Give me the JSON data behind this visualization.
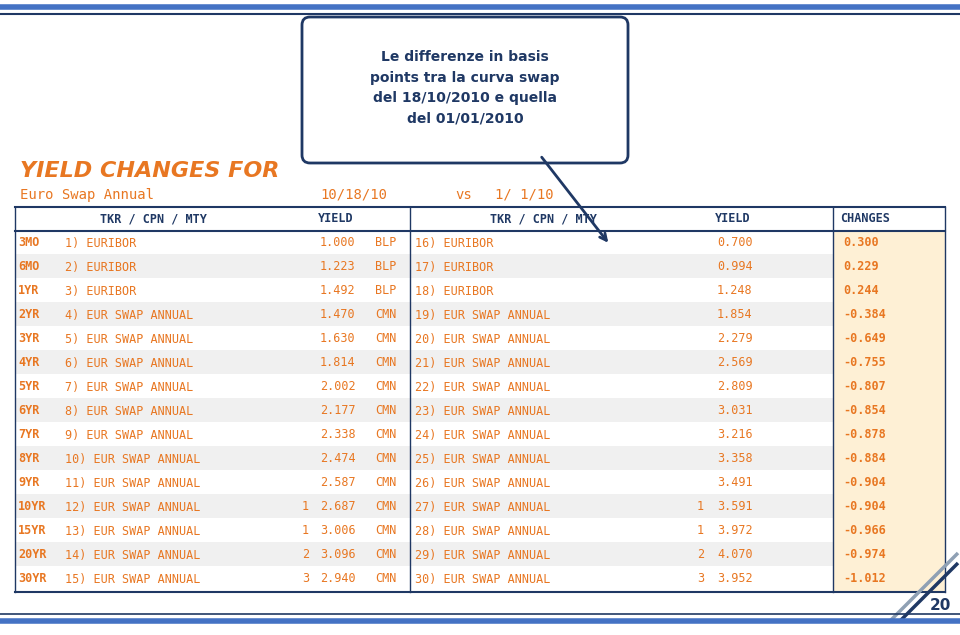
{
  "title_box_text": "Le differenze in basis\npoints tra la curva swap\ndel 18/10/2010 e quella\ndel 01/01/2010",
  "header_title": "YIELD CHANGES FOR",
  "subheader": "Euro Swap Annual",
  "date1": "10/18/10",
  "vs_text": "vs",
  "date2": "1/ 1/10",
  "orange_color": "#E87722",
  "dark_blue": "#1F3864",
  "mid_blue": "#4472C4",
  "rows": [
    [
      "3MO",
      "1) EURIBOR",
      "",
      "1.000",
      "BLP",
      "16) EURIBOR",
      "",
      "0.700",
      "0.300"
    ],
    [
      "6MO",
      "2) EURIBOR",
      "",
      "1.223",
      "BLP",
      "17) EURIBOR",
      "",
      "0.994",
      "0.229"
    ],
    [
      "1YR",
      "3) EURIBOR",
      "",
      "1.492",
      "BLP",
      "18) EURIBOR",
      "",
      "1.248",
      "0.244"
    ],
    [
      "2YR",
      "4) EUR SWAP ANNUAL",
      "",
      "1.470",
      "CMN",
      "19) EUR SWAP ANNUAL",
      "",
      "1.854",
      "-0.384"
    ],
    [
      "3YR",
      "5) EUR SWAP ANNUAL",
      "",
      "1.630",
      "CMN",
      "20) EUR SWAP ANNUAL",
      "",
      "2.279",
      "-0.649"
    ],
    [
      "4YR",
      "6) EUR SWAP ANNUAL",
      "",
      "1.814",
      "CMN",
      "21) EUR SWAP ANNUAL",
      "",
      "2.569",
      "-0.755"
    ],
    [
      "5YR",
      "7) EUR SWAP ANNUAL",
      "",
      "2.002",
      "CMN",
      "22) EUR SWAP ANNUAL",
      "",
      "2.809",
      "-0.807"
    ],
    [
      "6YR",
      "8) EUR SWAP ANNUAL",
      "",
      "2.177",
      "CMN",
      "23) EUR SWAP ANNUAL",
      "",
      "3.031",
      "-0.854"
    ],
    [
      "7YR",
      "9) EUR SWAP ANNUAL",
      "",
      "2.338",
      "CMN",
      "24) EUR SWAP ANNUAL",
      "",
      "3.216",
      "-0.878"
    ],
    [
      "8YR",
      "10) EUR SWAP ANNUAL",
      "",
      "2.474",
      "CMN",
      "25) EUR SWAP ANNUAL",
      "",
      "3.358",
      "-0.884"
    ],
    [
      "9YR",
      "11) EUR SWAP ANNUAL",
      "",
      "2.587",
      "CMN",
      "26) EUR SWAP ANNUAL",
      "",
      "3.491",
      "-0.904"
    ],
    [
      "10YR",
      "12) EUR SWAP ANNUAL",
      "1",
      "2.687",
      "CMN",
      "27) EUR SWAP ANNUAL",
      "1",
      "3.591",
      "-0.904"
    ],
    [
      "15YR",
      "13) EUR SWAP ANNUAL",
      "1",
      "3.006",
      "CMN",
      "28) EUR SWAP ANNUAL",
      "1",
      "3.972",
      "-0.966"
    ],
    [
      "20YR",
      "14) EUR SWAP ANNUAL",
      "2",
      "3.096",
      "CMN",
      "29) EUR SWAP ANNUAL",
      "2",
      "4.070",
      "-0.974"
    ],
    [
      "30YR",
      "15) EUR SWAP ANNUAL",
      "3",
      "2.940",
      "CMN",
      "30) EUR SWAP ANNUAL",
      "3",
      "3.952",
      "-1.012"
    ]
  ]
}
